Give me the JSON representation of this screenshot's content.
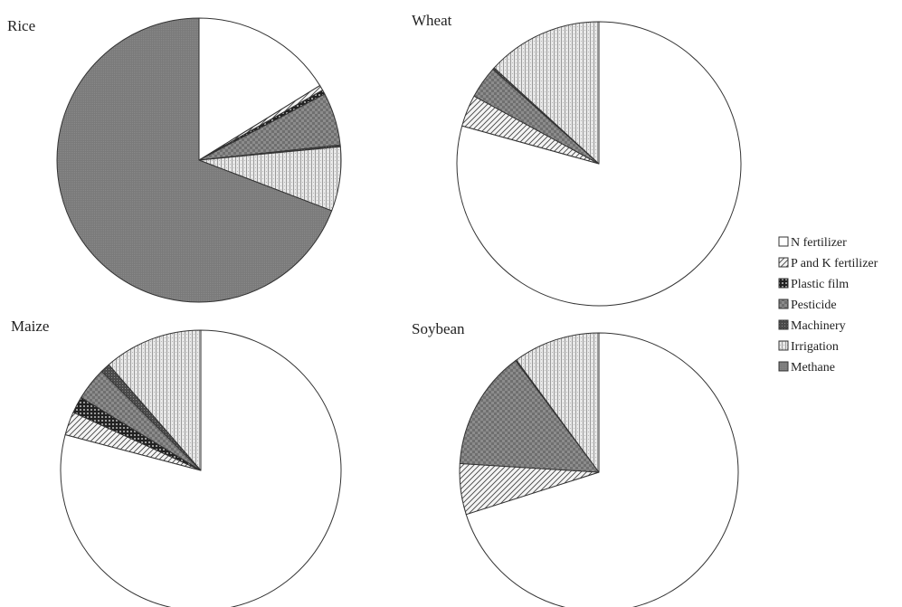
{
  "colors": {
    "background": "#ffffff",
    "outline": "#333333",
    "n_fertilizer": "#ffffff",
    "p_and_k_fertilizer": "#d9d9d9",
    "plastic_film": "#3a3a3a",
    "pesticide": "#7f7f7f",
    "machinery": "#595959",
    "irrigation": "#d0d0d0",
    "methane": "#808080"
  },
  "legend": {
    "position": "right",
    "items": [
      {
        "key": "n_fertilizer",
        "label": "N fertilizer"
      },
      {
        "key": "p_and_k_fertilizer",
        "label": "P and K fertilizer"
      },
      {
        "key": "plastic_film",
        "label": "Plastic film"
      },
      {
        "key": "pesticide",
        "label": "Pesticide"
      },
      {
        "key": "machinery",
        "label": "Machinery"
      },
      {
        "key": "irrigation",
        "label": "Irrigation"
      },
      {
        "key": "methane",
        "label": "Methane"
      }
    ]
  },
  "chart_data": [
    {
      "type": "pie",
      "title": "Rice",
      "labels": [
        "N fertilizer",
        "P and K fertilizer",
        "Plastic film",
        "Pesticide",
        "Machinery",
        "Irrigation",
        "Methane"
      ],
      "values": [
        16.2,
        0.6,
        0.5,
        6.0,
        0.2,
        7.3,
        69.2
      ],
      "start": "12 o'clock",
      "direction": "clockwise"
    },
    {
      "type": "pie",
      "title": "Wheat",
      "labels": [
        "N fertilizer",
        "P and K fertilizer",
        "Plastic film",
        "Pesticide",
        "Machinery",
        "Irrigation",
        "Methane"
      ],
      "values": [
        79.3,
        3.6,
        0,
        3.7,
        0.2,
        13.2,
        0
      ],
      "start": "12 o'clock",
      "direction": "clockwise"
    },
    {
      "type": "pie",
      "title": "Maize",
      "labels": [
        "N fertilizer",
        "P and K fertilizer",
        "Plastic film",
        "Pesticide",
        "Machinery",
        "Irrigation",
        "Methane"
      ],
      "values": [
        79.1,
        2.7,
        1.9,
        3.8,
        1.1,
        11.4,
        0
      ],
      "start": "12 o'clock",
      "direction": "clockwise"
    },
    {
      "type": "pie",
      "title": "Soybean",
      "labels": [
        "N fertilizer",
        "P and K fertilizer",
        "Plastic film",
        "Pesticide",
        "Machinery",
        "Irrigation",
        "Methane"
      ],
      "values": [
        70.1,
        5.9,
        0,
        13.8,
        0.1,
        10.1,
        0
      ],
      "start": "12 o'clock",
      "direction": "clockwise"
    }
  ]
}
